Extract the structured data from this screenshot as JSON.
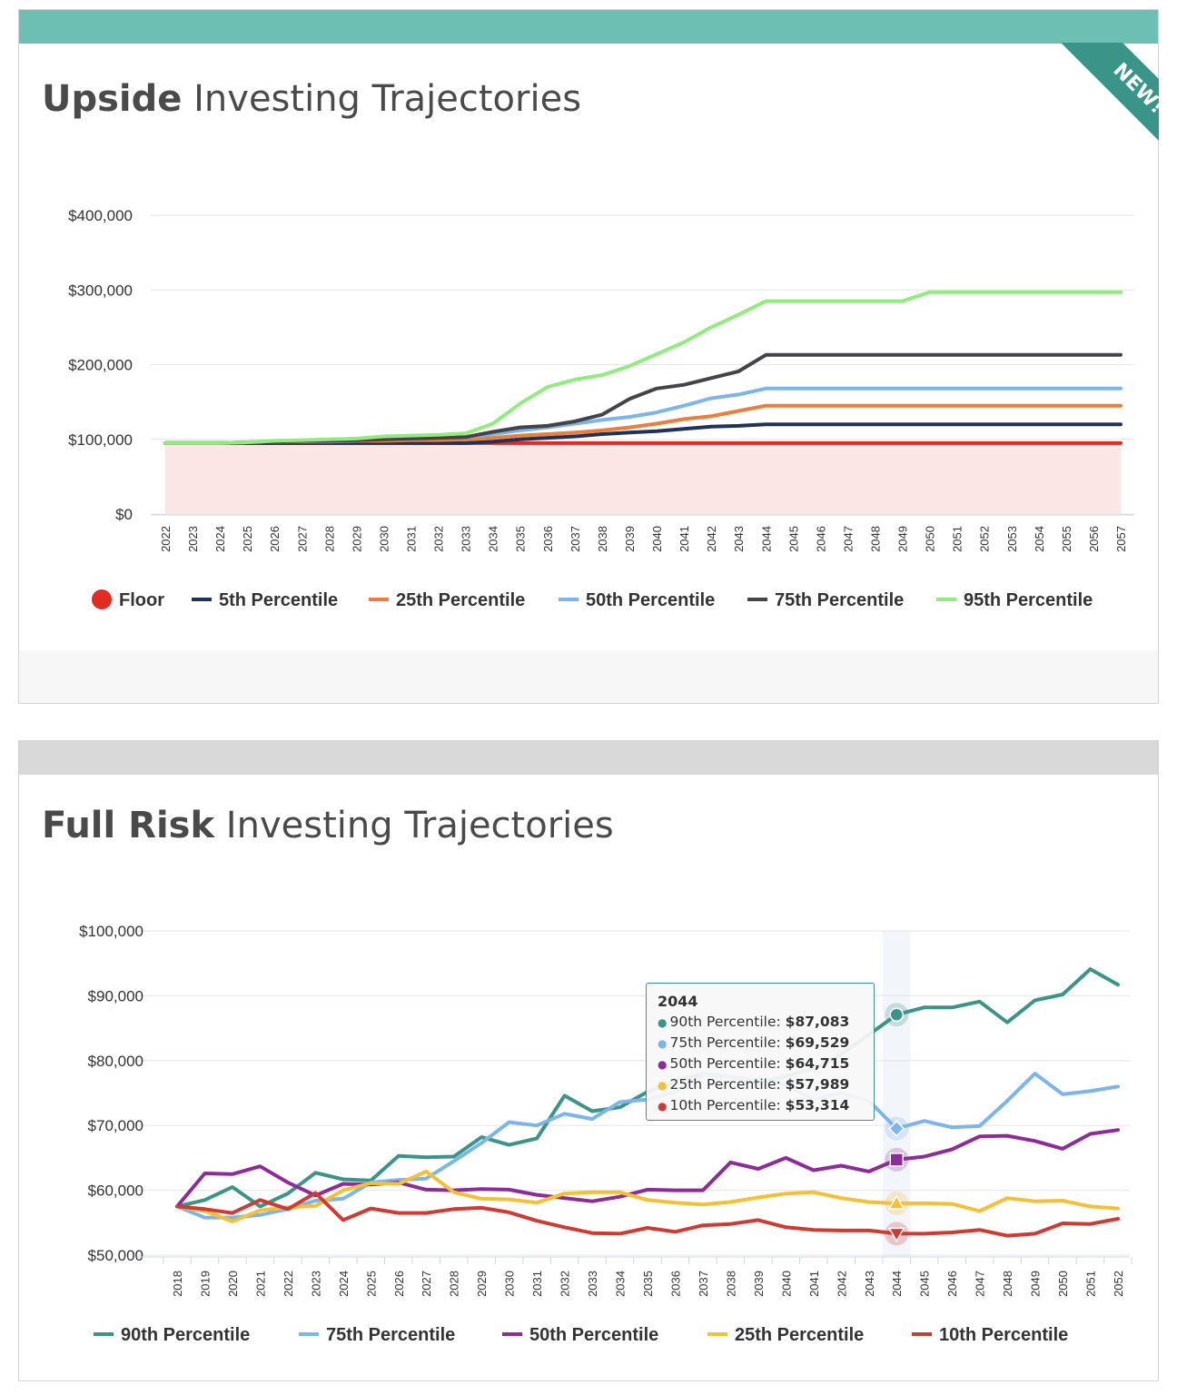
{
  "upside_card": {
    "title_bold": "Upside",
    "title_rest": " Investing Trajectories",
    "badge": "NEW!"
  },
  "fullrisk_card": {
    "title_bold": "Full Risk",
    "title_rest": " Investing Trajectories",
    "tooltip": {
      "title": "2044",
      "rows": [
        {
          "label": "90th Percentile:",
          "value": "$87,083",
          "color": "#3a9588"
        },
        {
          "label": "75th Percentile:",
          "value": "$69,529",
          "color": "#7cb5ec"
        },
        {
          "label": "50th Percentile:",
          "value": "$64,715",
          "color": "#8e2a9a"
        },
        {
          "label": "25th Percentile:",
          "value": "$57,989",
          "color": "#f6c034"
        },
        {
          "label": "10th Percentile:",
          "value": "$53,314",
          "color": "#cf3a33"
        }
      ]
    }
  },
  "chart_data": [
    {
      "type": "line",
      "x": [
        2022,
        2023,
        2024,
        2025,
        2026,
        2027,
        2028,
        2029,
        2030,
        2031,
        2032,
        2033,
        2034,
        2035,
        2036,
        2037,
        2038,
        2039,
        2040,
        2041,
        2042,
        2043,
        2044,
        2045,
        2046,
        2047,
        2048,
        2049,
        2050,
        2051,
        2052,
        2053,
        2054,
        2055,
        2056,
        2057
      ],
      "yticks": [
        0,
        100000,
        200000,
        300000,
        400000
      ],
      "ytick_labels": [
        "$0",
        "$100,000",
        "$200,000",
        "$300,000",
        "$400,000"
      ],
      "ylim": [
        0,
        400000
      ],
      "grid": true,
      "legend_position": "bottom",
      "floor": {
        "name": "Floor",
        "value": 95000,
        "color": "#e32b22",
        "fill": "#fbe6e5"
      },
      "series": [
        {
          "name": "Floor",
          "color": "#e32b22",
          "values": [
            95000,
            95000,
            95000,
            95000,
            95000,
            95000,
            95000,
            95000,
            95000,
            95000,
            95000,
            95000,
            95000,
            95000,
            95000,
            95000,
            95000,
            95000,
            95000,
            95000,
            95000,
            95000,
            95000,
            95000,
            95000,
            95000,
            95000,
            95000,
            95000,
            95000,
            95000,
            95000,
            95000,
            95000,
            95000,
            95000
          ]
        },
        {
          "name": "5th Percentile",
          "color": "#1f3359",
          "values": [
            95000,
            95000,
            95000,
            95000,
            95000,
            95000,
            95000,
            95000,
            95000,
            95000,
            95000,
            95000,
            97000,
            100000,
            102000,
            104000,
            107000,
            109000,
            111000,
            114000,
            117000,
            118000,
            120000,
            120000,
            120000,
            120000,
            120000,
            120000,
            120000,
            120000,
            120000,
            120000,
            120000,
            120000,
            120000,
            120000
          ]
        },
        {
          "name": "25th Percentile",
          "color": "#ed7d3a",
          "values": [
            95000,
            95000,
            95000,
            96000,
            97000,
            97000,
            97000,
            98000,
            98000,
            99000,
            99000,
            100000,
            102000,
            105000,
            107000,
            109000,
            112000,
            116000,
            121000,
            127000,
            131000,
            138000,
            145000,
            145000,
            145000,
            145000,
            145000,
            145000,
            145000,
            145000,
            145000,
            145000,
            145000,
            145000,
            145000,
            145000
          ]
        },
        {
          "name": "50th Percentile",
          "color": "#7cb5ec",
          "values": [
            95000,
            95000,
            95000,
            96000,
            97000,
            98000,
            98000,
            99000,
            100000,
            101000,
            102000,
            103000,
            107000,
            112000,
            116000,
            121000,
            126000,
            130000,
            136000,
            145000,
            155000,
            160000,
            168000,
            168000,
            168000,
            168000,
            168000,
            168000,
            168000,
            168000,
            168000,
            168000,
            168000,
            168000,
            168000,
            168000
          ]
        },
        {
          "name": "75th Percentile",
          "color": "#434348",
          "values": [
            95000,
            95000,
            95000,
            96000,
            97000,
            98000,
            98000,
            99000,
            100000,
            101000,
            102000,
            103000,
            110000,
            116000,
            118000,
            124000,
            133000,
            154000,
            168000,
            173000,
            182000,
            191000,
            213000,
            213000,
            213000,
            213000,
            213000,
            213000,
            213000,
            213000,
            213000,
            213000,
            213000,
            213000,
            213000,
            213000
          ]
        },
        {
          "name": "95th Percentile",
          "color": "#90ed7d",
          "values": [
            95000,
            95000,
            95000,
            96000,
            98000,
            99000,
            100000,
            101000,
            104000,
            105000,
            106000,
            108000,
            121000,
            148000,
            170000,
            180000,
            186000,
            198000,
            214000,
            230000,
            250000,
            267000,
            285000,
            285000,
            285000,
            285000,
            285000,
            285000,
            297000,
            297000,
            297000,
            297000,
            297000,
            297000,
            297000,
            297000
          ]
        }
      ]
    },
    {
      "type": "line",
      "x": [
        2018,
        2019,
        2020,
        2021,
        2022,
        2023,
        2024,
        2025,
        2026,
        2027,
        2028,
        2029,
        2030,
        2031,
        2032,
        2033,
        2034,
        2035,
        2036,
        2037,
        2038,
        2039,
        2040,
        2041,
        2042,
        2043,
        2044,
        2045,
        2046,
        2047,
        2048,
        2049,
        2050,
        2051,
        2052
      ],
      "yticks": [
        50000,
        60000,
        70000,
        80000,
        90000,
        100000
      ],
      "ytick_labels": [
        "$50,000",
        "$60,000",
        "$70,000",
        "$80,000",
        "$90,000",
        "$100,000"
      ],
      "ylim": [
        50000,
        100000
      ],
      "grid": true,
      "legend_position": "bottom",
      "highlight_x": 2044,
      "series": [
        {
          "name": "90th Percentile",
          "color": "#3a9588",
          "values": [
            57500,
            58500,
            60500,
            57500,
            59500,
            62700,
            61700,
            61500,
            65300,
            65100,
            65200,
            68200,
            67000,
            68000,
            74600,
            72200,
            72800,
            75200,
            76800,
            78000,
            77500,
            76500,
            77600,
            78700,
            81000,
            84000,
            87083,
            88200,
            88200,
            89100,
            85900,
            89300,
            90200,
            94100,
            91700
          ]
        },
        {
          "name": "75th Percentile",
          "color": "#7cb5ec",
          "values": [
            57500,
            55800,
            55800,
            56200,
            57100,
            58400,
            58700,
            61200,
            61600,
            61800,
            64500,
            67300,
            70500,
            70000,
            71800,
            71000,
            73600,
            74000,
            75200,
            77800,
            77500,
            76900,
            76300,
            74000,
            75000,
            73800,
            69529,
            70700,
            69700,
            69900,
            73800,
            78000,
            74800,
            75300,
            76000
          ]
        },
        {
          "name": "50th Percentile",
          "color": "#8e2a9a",
          "values": [
            57500,
            62600,
            62500,
            63700,
            61200,
            59200,
            61000,
            60900,
            61200,
            60100,
            60000,
            60200,
            60100,
            59300,
            58800,
            58300,
            59000,
            60100,
            60000,
            60000,
            64300,
            63300,
            65000,
            63100,
            63800,
            62900,
            64715,
            65200,
            66300,
            68300,
            68400,
            67600,
            66400,
            68700,
            69300
          ]
        },
        {
          "name": "25th Percentile",
          "color": "#f6c034",
          "values": [
            57500,
            56800,
            55200,
            56900,
            57400,
            57600,
            60000,
            61100,
            61000,
            62900,
            59700,
            58700,
            58600,
            58100,
            59500,
            59700,
            59700,
            58500,
            58100,
            57800,
            58200,
            58900,
            59500,
            59700,
            58800,
            58200,
            57989,
            58000,
            57900,
            56800,
            58800,
            58300,
            58400,
            57500,
            57200
          ]
        },
        {
          "name": "10th Percentile",
          "color": "#cf3a33",
          "values": [
            57500,
            57100,
            56500,
            58500,
            57100,
            59600,
            55400,
            57200,
            56500,
            56500,
            57100,
            57300,
            56600,
            55300,
            54300,
            53400,
            53300,
            54200,
            53600,
            54600,
            54800,
            55400,
            54300,
            53900,
            53800,
            53800,
            53314,
            53300,
            53500,
            53900,
            53000,
            53300,
            54900,
            54800,
            55600
          ]
        }
      ]
    }
  ]
}
